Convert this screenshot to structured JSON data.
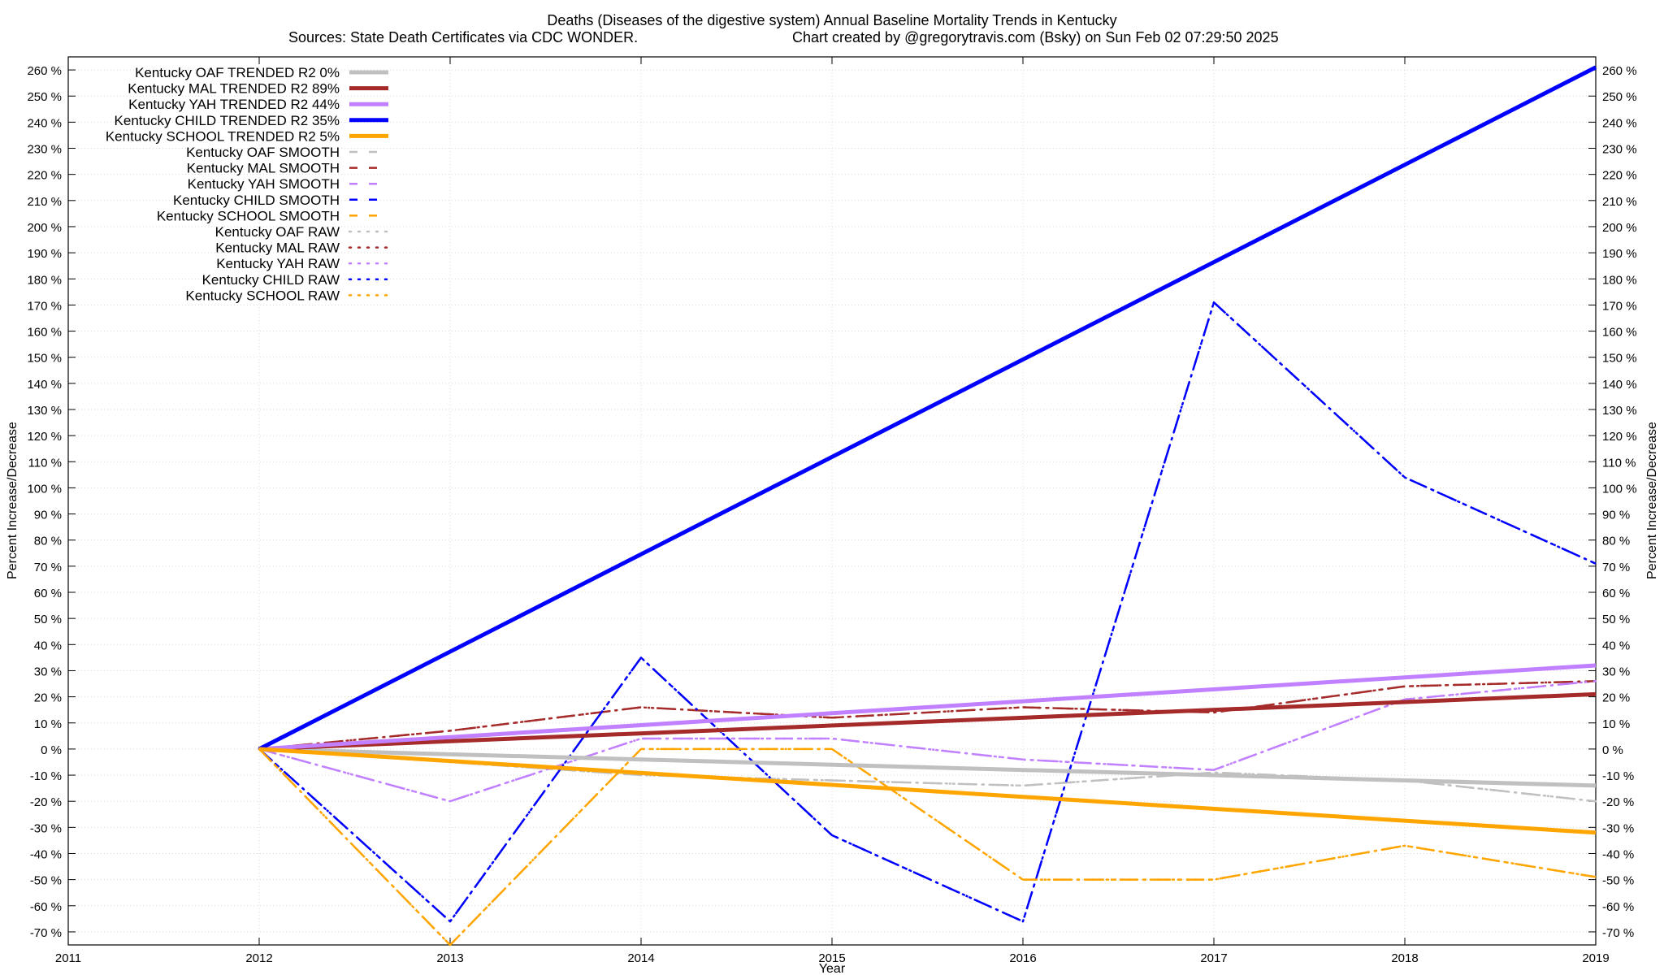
{
  "chart_data": {
    "type": "line",
    "title": "Deaths (Diseases of the digestive system)  Annual Baseline Mortality Trends in Kentucky",
    "subtitle_left": "Sources: State Death Certificates via CDC WONDER.",
    "subtitle_right": "Chart created by @gregorytravis.com (Bsky) on Sun Feb 02 07:29:50 2025",
    "xlabel": "Year",
    "ylabel": "Percent Increase/Decrease",
    "xlim": [
      2011,
      2019
    ],
    "ylim": [
      -75,
      265
    ],
    "x_ticks": [
      "2011",
      "2012",
      "2013",
      "2014",
      "2015",
      "2016",
      "2017",
      "2018",
      "2019"
    ],
    "y_ticks_left": [
      "260 %",
      "250 %",
      "240 %",
      "230 %",
      "220 %",
      "210 %",
      "200 %",
      "190 %",
      "180 %",
      "170 %",
      "160 %",
      "150 %",
      "140 %",
      "130 %",
      "120 %",
      "110 %",
      "100 %",
      "90 %",
      "80 %",
      "70 %",
      "60 %",
      "50 %",
      "40 %",
      "30 %",
      "20 %",
      "10 %",
      "0 %",
      "-10 %",
      "-20 %",
      "-30 %",
      "-40 %",
      "-50 %",
      "-60 %",
      "-70 %"
    ],
    "y_ticks_right": [
      "260 %",
      "250 %",
      "240 %",
      "230 %",
      "220 %",
      "210 %",
      "200 %",
      "190 %",
      "180 %",
      "170 %",
      "160 %",
      "150 %",
      "140 %",
      "130 %",
      "120 %",
      "110 %",
      "100 %",
      "90 %",
      "80 %",
      "70 %",
      "60 %",
      "50 %",
      "40 %",
      "30 %",
      "20 %",
      "10 %",
      "0 %",
      "-10 %",
      "-20 %",
      "-30 %",
      "-40 %",
      "-50 %",
      "-60 %",
      "-70 %"
    ],
    "grid": true,
    "legend_position": "top-left",
    "series": [
      {
        "name": "Kentucky OAF TRENDED R2   0%",
        "color": "#c0c0c0",
        "style": "trend",
        "x": [
          2012,
          2019
        ],
        "values": [
          0,
          -14
        ]
      },
      {
        "name": "Kentucky MAL TRENDED R2  89%",
        "color": "#a52a2a",
        "style": "trend",
        "x": [
          2012,
          2019
        ],
        "values": [
          0,
          21
        ]
      },
      {
        "name": "Kentucky YAH TRENDED R2  44%",
        "color": "#c080ff",
        "style": "trend",
        "x": [
          2012,
          2019
        ],
        "values": [
          0,
          32
        ]
      },
      {
        "name": "Kentucky CHILD TRENDED R2  35%",
        "color": "#0000ff",
        "style": "trend",
        "x": [
          2012,
          2019
        ],
        "values": [
          0,
          261
        ]
      },
      {
        "name": "Kentucky SCHOOL TRENDED R2   5%",
        "color": "#ffa500",
        "style": "trend",
        "x": [
          2012,
          2019
        ],
        "values": [
          0,
          -32
        ]
      },
      {
        "name": "Kentucky OAF SMOOTH",
        "color": "#c0c0c0",
        "style": "smooth",
        "x": [
          2012,
          2013,
          2014,
          2015,
          2016,
          2017,
          2018,
          2019
        ],
        "values": [
          0,
          -5,
          -10,
          -12,
          -14,
          -9,
          -12,
          -20
        ]
      },
      {
        "name": "Kentucky MAL SMOOTH",
        "color": "#a52a2a",
        "style": "smooth",
        "x": [
          2012,
          2013,
          2014,
          2015,
          2016,
          2017,
          2018,
          2019
        ],
        "values": [
          0,
          7,
          16,
          12,
          16,
          14,
          24,
          26
        ]
      },
      {
        "name": "Kentucky YAH SMOOTH",
        "color": "#c080ff",
        "style": "smooth",
        "x": [
          2012,
          2013,
          2014,
          2015,
          2016,
          2017,
          2018,
          2019
        ],
        "values": [
          0,
          -20,
          4,
          4,
          -4,
          -8,
          19,
          26
        ]
      },
      {
        "name": "Kentucky CHILD SMOOTH",
        "color": "#0000ff",
        "style": "smooth",
        "x": [
          2012,
          2013,
          2014,
          2015,
          2016,
          2017,
          2018,
          2019
        ],
        "values": [
          0,
          -66,
          35,
          -33,
          -66,
          171,
          104,
          71
        ]
      },
      {
        "name": "Kentucky SCHOOL SMOOTH",
        "color": "#ffa500",
        "style": "smooth",
        "x": [
          2012,
          2013,
          2014,
          2015,
          2016,
          2017,
          2018,
          2019
        ],
        "values": [
          0,
          -75,
          0,
          0,
          -50,
          -50,
          -37,
          -49
        ]
      },
      {
        "name": "Kentucky OAF RAW",
        "color": "#c0c0c0",
        "style": "raw",
        "x": [
          2012,
          2013,
          2014,
          2015,
          2016,
          2017,
          2018,
          2019
        ],
        "values": [
          0,
          -5,
          -10,
          -12,
          -14,
          -9,
          -12,
          -20
        ]
      },
      {
        "name": "Kentucky MAL RAW",
        "color": "#a52a2a",
        "style": "raw",
        "x": [
          2012,
          2013,
          2014,
          2015,
          2016,
          2017,
          2018,
          2019
        ],
        "values": [
          0,
          7,
          16,
          12,
          16,
          14,
          24,
          26
        ]
      },
      {
        "name": "Kentucky YAH RAW",
        "color": "#c080ff",
        "style": "raw",
        "x": [
          2012,
          2013,
          2014,
          2015,
          2016,
          2017,
          2018,
          2019
        ],
        "values": [
          0,
          -20,
          4,
          4,
          -4,
          -8,
          19,
          26
        ]
      },
      {
        "name": "Kentucky CHILD RAW",
        "color": "#0000ff",
        "style": "raw",
        "x": [
          2012,
          2013,
          2014,
          2015,
          2016,
          2017,
          2018,
          2019
        ],
        "values": [
          0,
          -66,
          35,
          -33,
          -66,
          171,
          104,
          71
        ]
      },
      {
        "name": "Kentucky SCHOOL RAW",
        "color": "#ffa500",
        "style": "raw",
        "x": [
          2012,
          2013,
          2014,
          2015,
          2016,
          2017,
          2018,
          2019
        ],
        "values": [
          0,
          -75,
          0,
          0,
          -50,
          -50,
          -37,
          -49
        ]
      }
    ]
  }
}
